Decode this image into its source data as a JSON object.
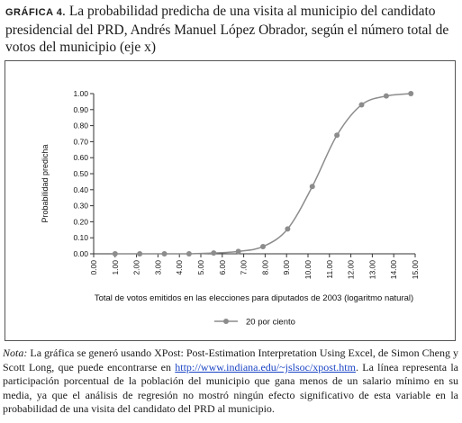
{
  "title": {
    "label": "GRÁFICA 4.",
    "text": "La probabilidad predicha de una visita al municipio del candidato presidencial del PRD, Andrés Manuel López Obrador, según el número total de votos del municipio (eje x)"
  },
  "note": {
    "lead": "Nota:",
    "part1": "La gráfica se generó usando XPost: Post-Estimation Interpretation Using Excel, de Simon Cheng y Scott Long, que puede encontrarse en",
    "link": "http://www.indiana.edu/~jslsoc/xpost.htm",
    "part2": ". La línea representa la participación porcentual de la población del municipio que gana menos de un salario mínimo en su media, ya que el análisis de regresión no mostró ningún efecto significativo de esta variable en la probabilidad de una visita del candidato del PRD al municipio."
  },
  "chart_data": {
    "type": "line",
    "xlabel": "Total de votos emitidos en las elecciones para diputados de 2003 (logaritmo natural)",
    "ylabel": "Probabilidad predicha",
    "xlim": [
      0,
      15
    ],
    "ylim": [
      0,
      1
    ],
    "x_ticks": [
      "0.00",
      "1.00",
      "2.00",
      "3.00",
      "4.00",
      "5.00",
      "6.00",
      "7.00",
      "8.00",
      "9.00",
      "10.00",
      "11.00",
      "12.00",
      "13.00",
      "14.00",
      "15.00"
    ],
    "y_ticks": [
      "0.00",
      "0.10",
      "0.20",
      "0.30",
      "0.40",
      "0.50",
      "0.60",
      "0.70",
      "0.80",
      "0.90",
      "1.00"
    ],
    "grid": false,
    "legend_position": "bottom",
    "series": [
      {
        "name": "20 por ciento",
        "color": "#8c8c8c",
        "x": [
          1.0,
          2.15,
          3.3,
          4.45,
          5.6,
          6.75,
          7.9,
          9.05,
          10.2,
          11.35,
          12.5,
          13.65,
          14.8
        ],
        "y": [
          0.0,
          0.0,
          0.0,
          0.0,
          0.005,
          0.015,
          0.045,
          0.155,
          0.42,
          0.74,
          0.93,
          0.985,
          1.0
        ]
      }
    ]
  }
}
